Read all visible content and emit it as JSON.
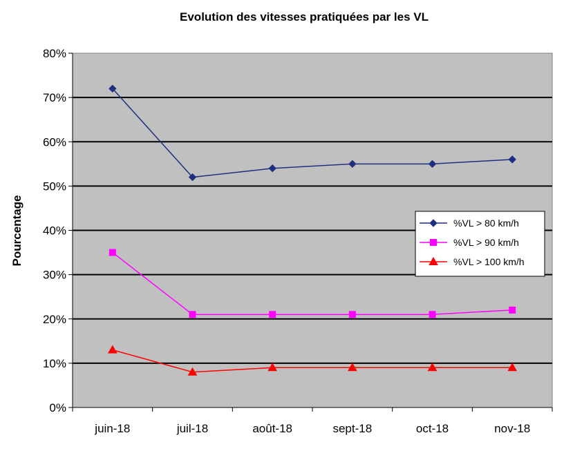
{
  "chart_data": {
    "type": "line",
    "title": "Evolution des vitesses pratiquées par les VL",
    "xlabel": "",
    "ylabel": "Pourcentage",
    "categories": [
      "juin-18",
      "juil-18",
      "août-18",
      "sept-18",
      "oct-18",
      "nov-18"
    ],
    "y_ticks": [
      "0%",
      "10%",
      "20%",
      "30%",
      "40%",
      "50%",
      "60%",
      "70%",
      "80%"
    ],
    "ylim": [
      0,
      80
    ],
    "grid": true,
    "plot_background": "#C0C0C0",
    "legend_position": "right",
    "series": [
      {
        "name": "%VL > 80 km/h",
        "values": [
          72,
          52,
          54,
          55,
          55,
          56
        ],
        "color": "#1F2F80",
        "marker": "diamond"
      },
      {
        "name": "%VL > 90 km/h",
        "values": [
          35,
          21,
          21,
          21,
          21,
          22
        ],
        "color": "#FF00FF",
        "marker": "square"
      },
      {
        "name": "%VL > 100 km/h",
        "values": [
          13,
          8,
          9,
          9,
          9,
          9
        ],
        "color": "#FF0000",
        "marker": "triangle"
      }
    ]
  }
}
